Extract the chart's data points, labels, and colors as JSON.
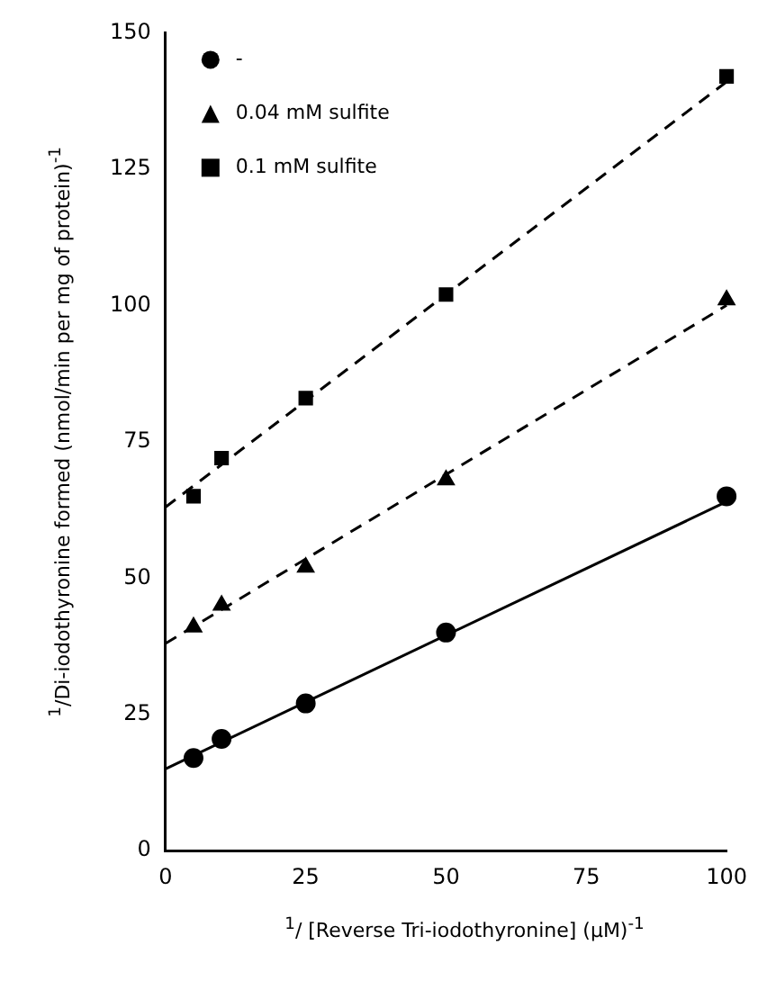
{
  "chart_data": {
    "type": "scatter",
    "xlabel": "$^{1}$/ [Reverse Tri-iodothyronine] (μM)$^{-1}$",
    "ylabel": "$^{1}$/Di-iodothyronine formed (nmol/min per mg of protein)$^{-1}$",
    "xlim": [
      0,
      100
    ],
    "xticks": [
      0,
      25,
      50,
      75,
      100
    ],
    "ylim": [
      0,
      150
    ],
    "yticks": [
      0,
      25,
      50,
      75,
      100,
      125,
      150
    ],
    "grid": false,
    "legend": "top left",
    "series": [
      {
        "name": "-",
        "color": "#000000",
        "marker": "circle",
        "x": [
          5,
          10,
          25,
          50,
          100
        ],
        "values": [
          17,
          20.5,
          27,
          40,
          65
        ]
      },
      {
        "name": "0.04 mM sulfite",
        "color": "#000000",
        "marker": "triangle",
        "x": [
          5,
          10,
          25,
          50,
          100
        ],
        "values": [
          41,
          45,
          52,
          68,
          101
        ]
      },
      {
        "name": "0.1 mM sulfite",
        "color": "#000000",
        "marker": "square",
        "x": [
          5,
          10,
          25,
          50,
          100
        ],
        "values": [
          65,
          72,
          83,
          102,
          142
        ]
      },
      {
        "type": "line",
        "color": "#000000",
        "marker": "none",
        "line_style": "solid",
        "x": [
          0,
          100
        ],
        "values": [
          15,
          64
        ]
      },
      {
        "type": "line",
        "color": "#000000",
        "marker": "none",
        "line_style": "dashed",
        "x": [
          0,
          100
        ],
        "values": [
          38,
          100
        ]
      },
      {
        "type": "line",
        "color": "#000000",
        "marker": "none",
        "line_style": "dashed",
        "x": [
          0,
          100
        ],
        "values": [
          63,
          141
        ]
      }
    ]
  }
}
